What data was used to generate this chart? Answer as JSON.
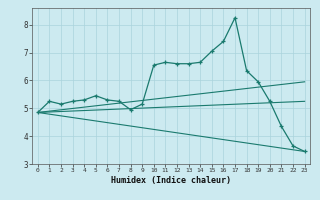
{
  "xlabel": "Humidex (Indice chaleur)",
  "ylabel": "",
  "bg_color": "#cceaf0",
  "grid_color": "#aad4dd",
  "line_color": "#1a7a6e",
  "xlim": [
    -0.5,
    23.5
  ],
  "ylim": [
    3.0,
    8.6
  ],
  "yticks": [
    3,
    4,
    5,
    6,
    7,
    8
  ],
  "xticks": [
    0,
    1,
    2,
    3,
    4,
    5,
    6,
    7,
    8,
    9,
    10,
    11,
    12,
    13,
    14,
    15,
    16,
    17,
    18,
    19,
    20,
    21,
    22,
    23
  ],
  "line1_x": [
    0,
    1,
    2,
    3,
    4,
    5,
    6,
    7,
    8,
    9,
    10,
    11,
    12,
    13,
    14,
    15,
    16,
    17,
    18,
    19,
    20,
    21,
    22,
    23
  ],
  "line1_y": [
    4.85,
    5.25,
    5.15,
    5.25,
    5.3,
    5.45,
    5.3,
    5.25,
    4.95,
    5.15,
    6.55,
    6.65,
    6.6,
    6.6,
    6.65,
    7.05,
    7.4,
    8.25,
    6.35,
    5.95,
    5.25,
    4.35,
    3.65,
    3.45
  ],
  "line2_x": [
    0,
    23
  ],
  "line2_y": [
    4.85,
    5.25
  ],
  "line3_x": [
    0,
    23
  ],
  "line3_y": [
    4.85,
    3.45
  ],
  "line4_x": [
    0,
    23
  ],
  "line4_y": [
    4.85,
    5.95
  ]
}
